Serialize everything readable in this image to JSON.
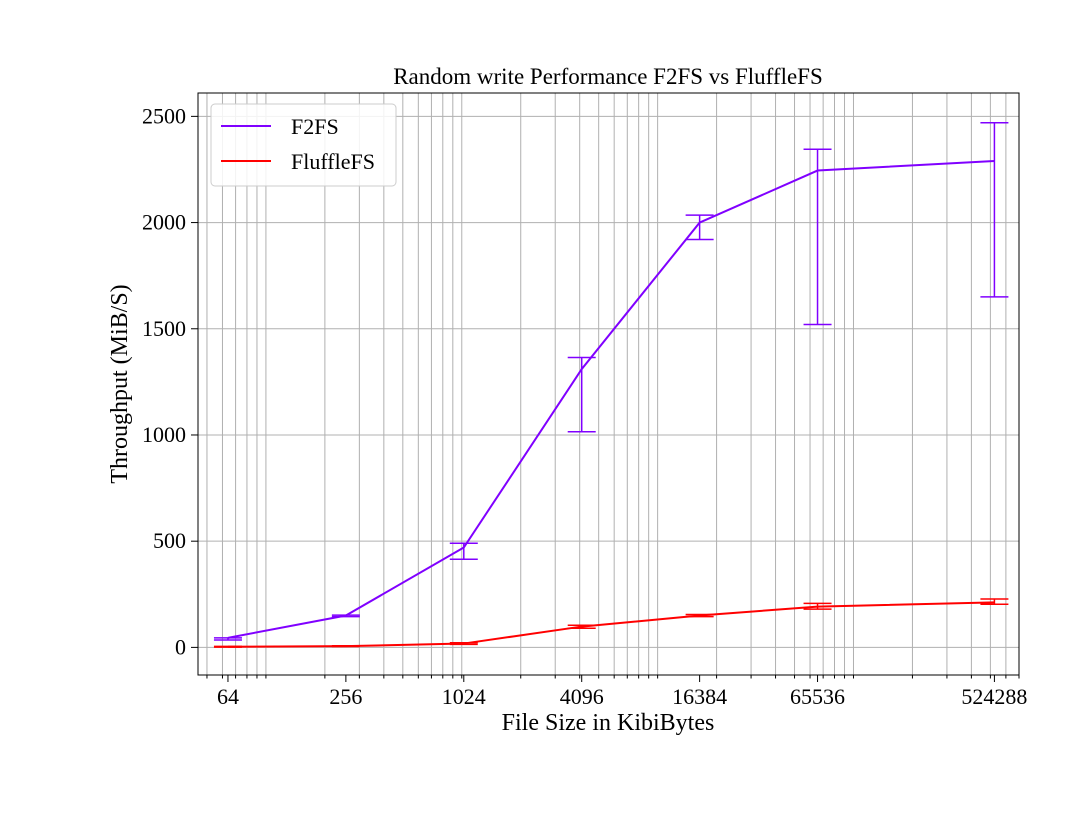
{
  "chart_data": {
    "type": "line",
    "title": "Random write Performance F2FS vs FluffleFS",
    "xlabel": "File Size in KibiBytes",
    "ylabel": "Throughput (MiB/S)",
    "xscale": "log2",
    "xlim": [
      45,
      700000
    ],
    "ylim": [
      -130,
      2610
    ],
    "grid": true,
    "legend": "upper-left",
    "xticks": [
      64,
      256,
      1024,
      4096,
      16384,
      65536,
      524288
    ],
    "xtick_labels": [
      "64",
      "256",
      "1024",
      "4096",
      "16384",
      "65536",
      "524288"
    ],
    "yticks": [
      0,
      500,
      1000,
      1500,
      2000,
      2500
    ],
    "ytick_labels": [
      "0",
      "500",
      "1000",
      "1500",
      "2000",
      "2500"
    ],
    "x": [
      64,
      256,
      1024,
      4096,
      16384,
      65536,
      524288
    ],
    "series": [
      {
        "name": "F2FS",
        "color": "#8000ff",
        "values": [
          45,
          150,
          470,
          1310,
          2000,
          2245,
          2290
        ],
        "err_low": [
          35,
          145,
          415,
          1015,
          1920,
          1520,
          1650
        ],
        "err_high": [
          45,
          152,
          490,
          1365,
          2035,
          2345,
          2470
        ]
      },
      {
        "name": "FluffleFS",
        "color": "#ff0000",
        "values": [
          3,
          6,
          18,
          98,
          150,
          192,
          212
        ],
        "err_low": [
          1,
          4,
          14,
          90,
          145,
          180,
          203
        ],
        "err_high": [
          5,
          8,
          22,
          104,
          155,
          207,
          228
        ]
      }
    ]
  }
}
